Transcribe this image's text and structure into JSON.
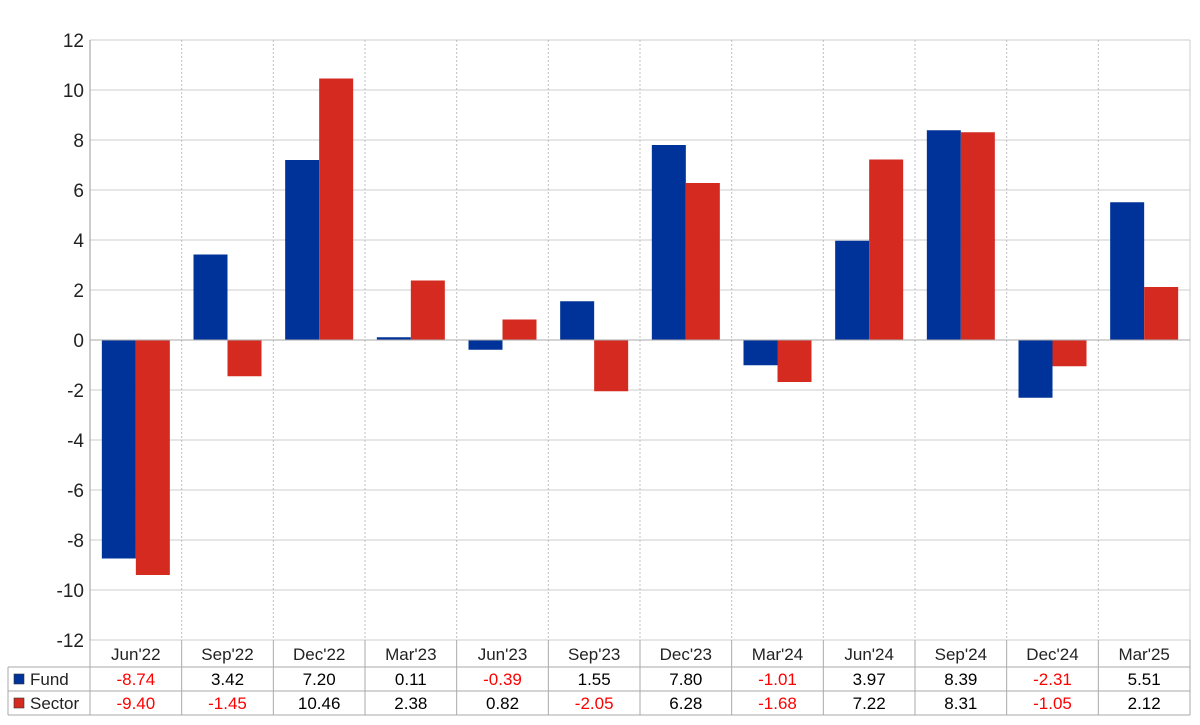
{
  "chart_data": {
    "type": "bar",
    "categories": [
      "Jun'22",
      "Sep'22",
      "Dec'22",
      "Mar'23",
      "Jun'23",
      "Sep'23",
      "Dec'23",
      "Mar'24",
      "Jun'24",
      "Sep'24",
      "Dec'24",
      "Mar'25"
    ],
    "series": [
      {
        "name": "Fund",
        "color": "#003399",
        "values": [
          -8.74,
          3.42,
          7.2,
          0.11,
          -0.39,
          1.55,
          7.8,
          -1.01,
          3.97,
          8.39,
          -2.31,
          5.51
        ],
        "labels": [
          "-8.74",
          "3.42",
          "7.20",
          "0.11",
          "-0.39",
          "1.55",
          "7.80",
          "-1.01",
          "3.97",
          "8.39",
          "-2.31",
          "5.51"
        ]
      },
      {
        "name": "Sector",
        "color": "#d42a20",
        "values": [
          -9.4,
          -1.45,
          10.46,
          2.38,
          0.82,
          -2.05,
          6.28,
          -1.68,
          7.22,
          8.31,
          -1.05,
          2.12
        ],
        "labels": [
          "-9.40",
          "-1.45",
          "10.46",
          "2.38",
          "0.82",
          "-2.05",
          "6.28",
          "-1.68",
          "7.22",
          "8.31",
          "-1.05",
          "2.12"
        ]
      }
    ],
    "ylim": [
      -12,
      12
    ],
    "yticks": [
      12,
      10,
      8,
      6,
      4,
      2,
      0,
      -2,
      -4,
      -6,
      -8,
      -10,
      -12
    ],
    "grid": true,
    "legend": "data-table-left",
    "negative_text_color": "#ff0000",
    "positive_text_color": "#000000"
  }
}
